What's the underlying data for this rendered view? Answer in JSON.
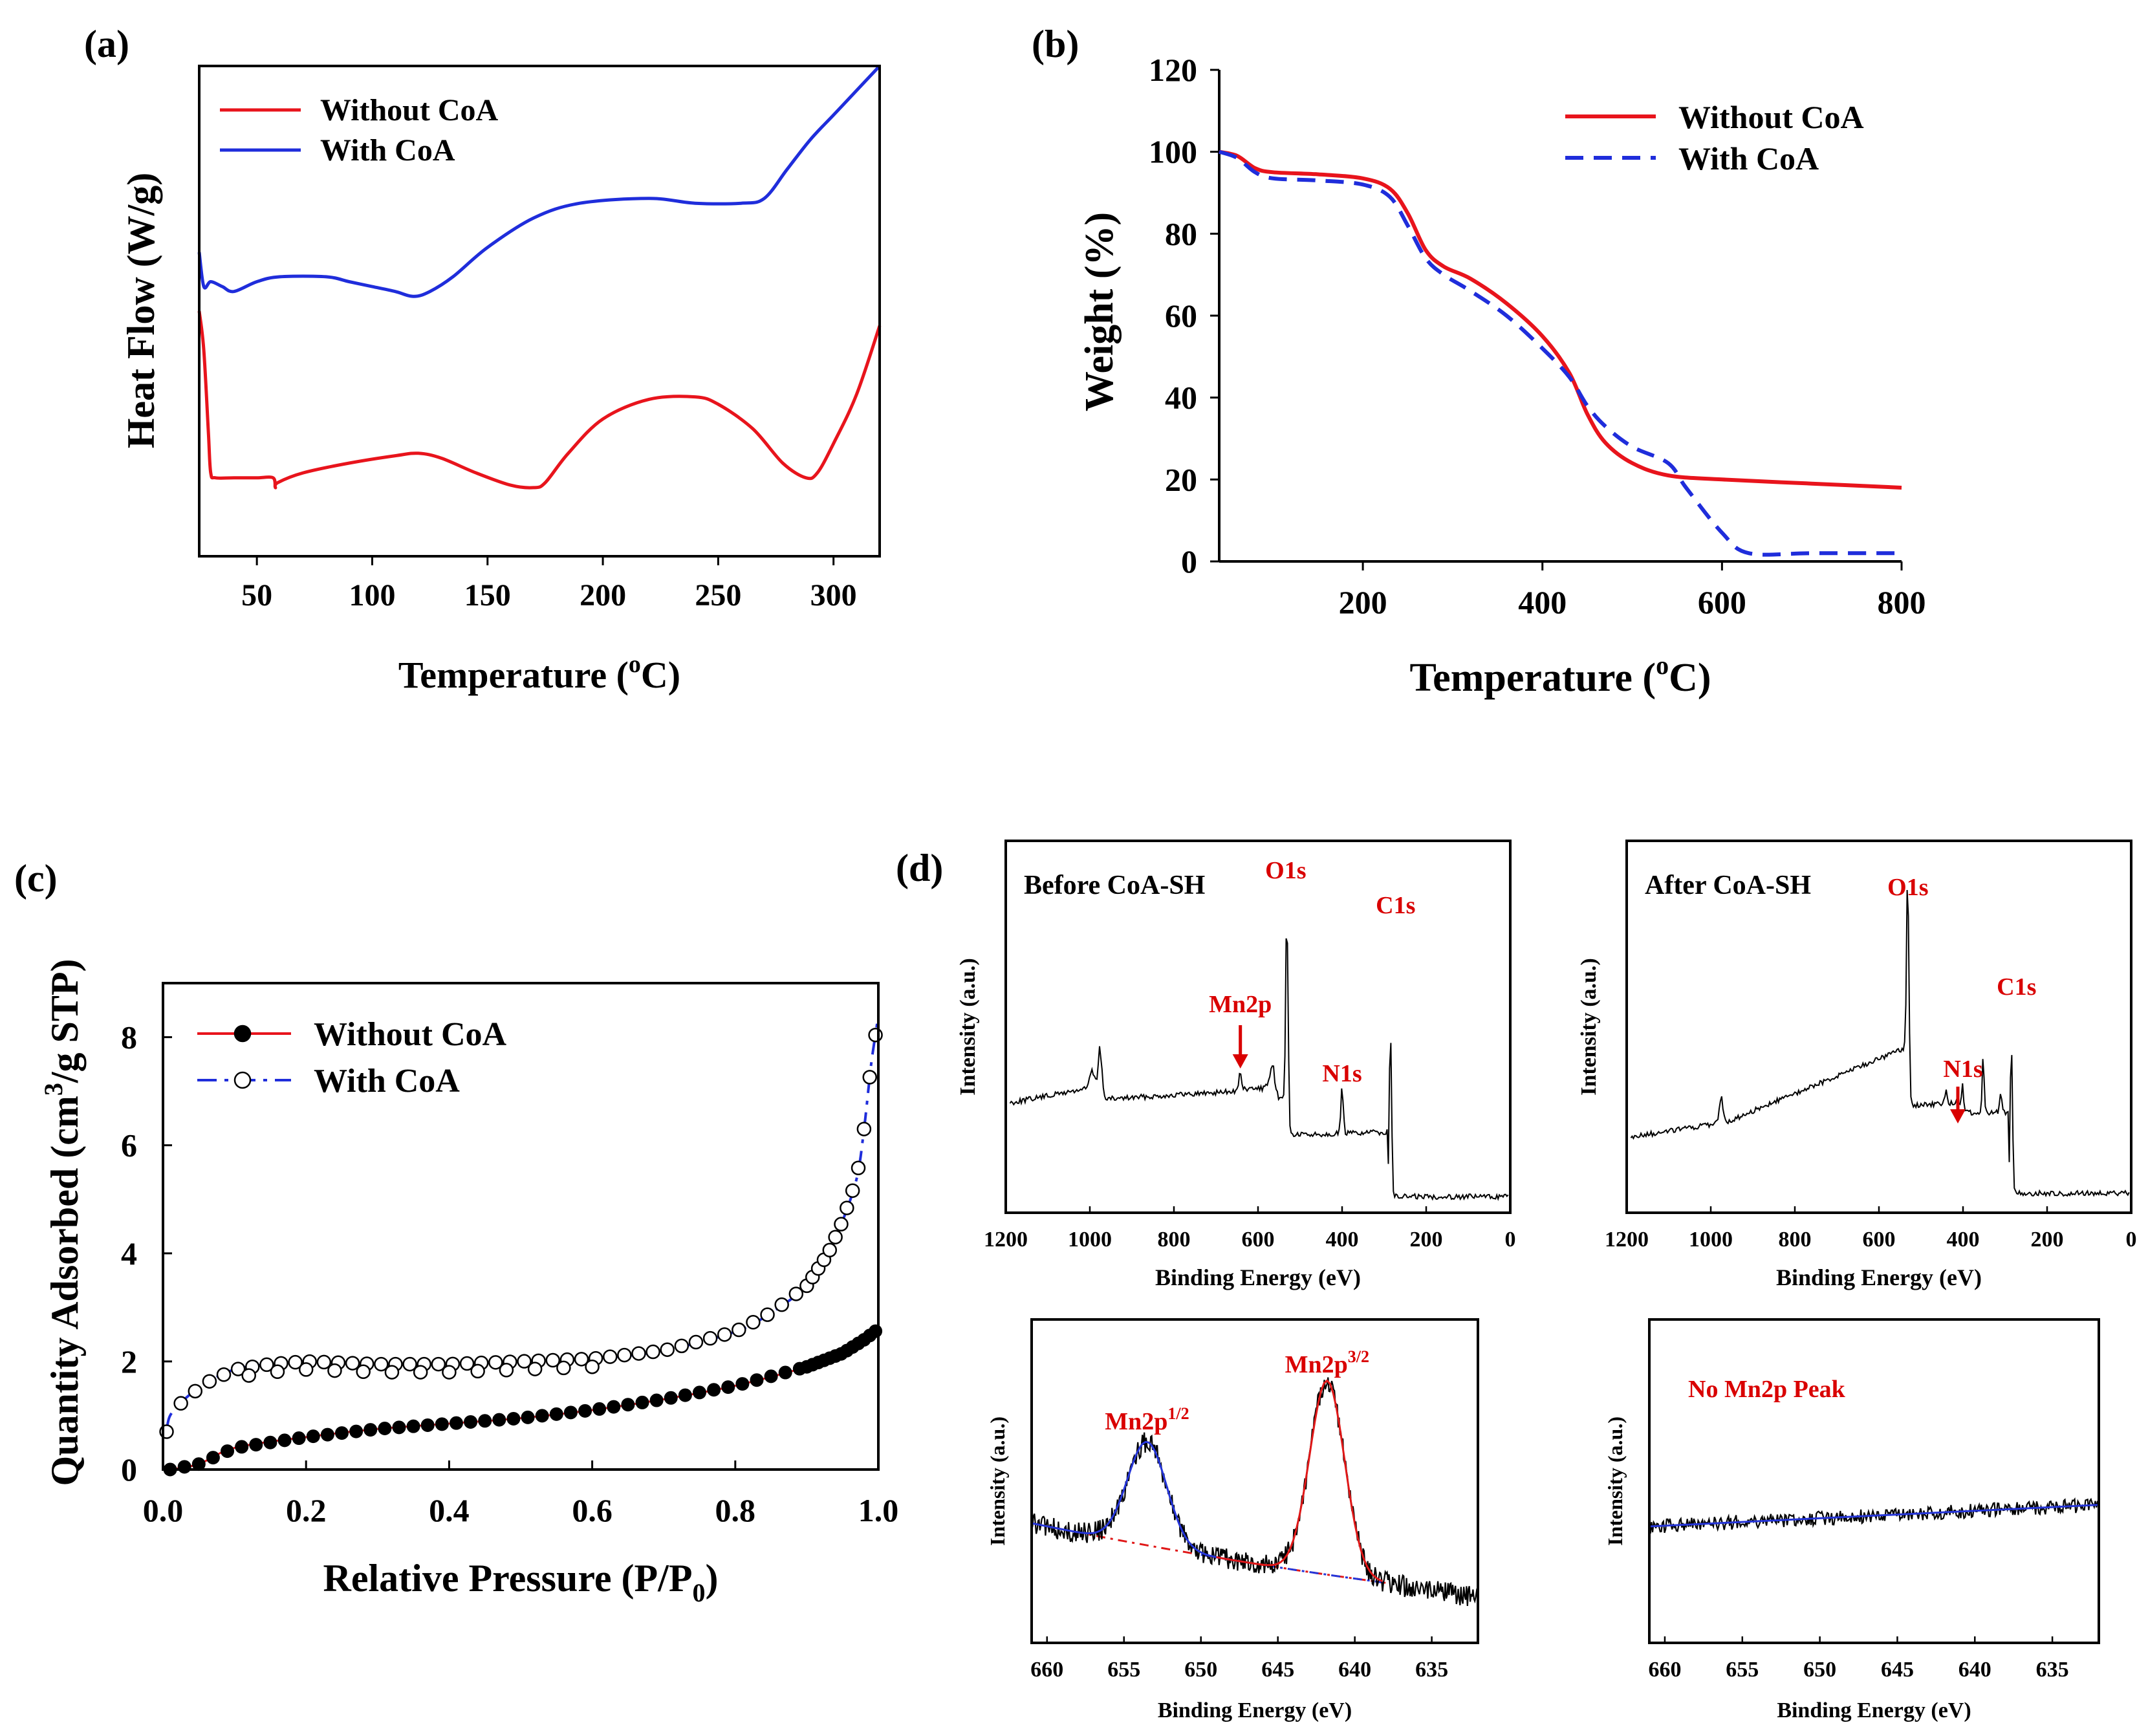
{
  "chart_data": [
    {
      "id": "a",
      "type": "line",
      "panel_label": "(a)",
      "xlabel": "Temperature (",
      "xlabel_sup": "o",
      "xlabel_end": "C)",
      "ylabel": "Heat Flow (W/g)",
      "xlim": [
        25,
        320
      ],
      "ylim": [
        0,
        100
      ],
      "xticks": [
        50,
        100,
        150,
        200,
        250,
        300
      ],
      "colors": {
        "without": "#e8141c",
        "with": "#1f2ddb"
      },
      "series": [
        {
          "name": "Without CoA",
          "x": [
            25,
            27,
            29,
            30,
            32,
            40,
            50,
            57,
            58,
            59,
            70,
            90,
            110,
            120,
            130,
            145,
            160,
            170,
            175,
            185,
            200,
            220,
            240,
            250,
            265,
            278,
            288,
            293,
            300,
            310,
            320
          ],
          "y": [
            50,
            42,
            25,
            17,
            16,
            16,
            16,
            16,
            14,
            15,
            17,
            19,
            20.5,
            21,
            20,
            17,
            14.5,
            14,
            15,
            21,
            28,
            32,
            32.5,
            31,
            26,
            19,
            16,
            17,
            23,
            33,
            47
          ]
        },
        {
          "name": "With CoA",
          "x": [
            25,
            27,
            30,
            35,
            40,
            50,
            60,
            80,
            90,
            100,
            110,
            118,
            125,
            135,
            150,
            170,
            190,
            220,
            240,
            260,
            270,
            280,
            290,
            300,
            310,
            320
          ],
          "y": [
            62,
            55,
            56,
            55,
            54,
            56,
            57,
            57,
            56,
            55,
            54,
            53,
            54,
            57,
            63,
            69,
            72,
            73,
            72,
            72,
            73,
            79,
            85,
            90,
            95,
            100
          ]
        }
      ]
    },
    {
      "id": "b",
      "type": "line",
      "panel_label": "(b)",
      "xlabel": "Temperature (",
      "xlabel_sup": "o",
      "xlabel_end": "C)",
      "ylabel": "Weight (%)",
      "xlim": [
        40,
        800
      ],
      "ylim": [
        0,
        120
      ],
      "xticks": [
        200,
        400,
        600,
        800
      ],
      "yticks": [
        0,
        20,
        40,
        60,
        80,
        100,
        120
      ],
      "colors": {
        "without": "#e8141c",
        "with": "#1f2ddb"
      },
      "series": [
        {
          "name": "Without CoA",
          "style": "solid",
          "x": [
            40,
            60,
            80,
            100,
            150,
            200,
            230,
            250,
            270,
            290,
            320,
            360,
            400,
            430,
            450,
            470,
            500,
            540,
            600,
            700,
            800
          ],
          "y": [
            100,
            99,
            96,
            95,
            94.5,
            93.5,
            91,
            85,
            76,
            72,
            69,
            63,
            55,
            46,
            36,
            29,
            24,
            21,
            20,
            19,
            18
          ]
        },
        {
          "name": "With CoA",
          "style": "dashed",
          "x": [
            40,
            60,
            80,
            100,
            150,
            200,
            230,
            250,
            270,
            290,
            320,
            360,
            400,
            430,
            450,
            470,
            500,
            540,
            560,
            600,
            630,
            700,
            800
          ],
          "y": [
            100,
            98.5,
            95,
            93.5,
            93,
            92,
            89,
            82,
            74,
            70,
            66,
            60,
            52,
            45,
            38,
            33,
            28,
            24,
            18,
            7,
            2,
            2,
            2
          ]
        }
      ]
    },
    {
      "id": "c",
      "type": "scatter",
      "panel_label": "(c)",
      "xlabel": "Relative Pressure (P/P",
      "xlabel_sub": "0",
      "xlabel_end": ")",
      "ylabel": "Quantity Adsorbed (cm",
      "ylabel_sup": "3",
      "ylabel_end": "/g STP)",
      "xlim": [
        0,
        1.0
      ],
      "ylim": [
        0,
        9
      ],
      "xticks": [
        0.0,
        0.2,
        0.4,
        0.6,
        0.8,
        1.0
      ],
      "yticks": [
        0,
        2,
        4,
        6,
        8
      ],
      "colors": {
        "without": "#e8141c",
        "with": "#1f2ddb"
      },
      "series": [
        {
          "name": "Without CoA",
          "marker": "filled-circle",
          "x": [
            0.01,
            0.05,
            0.1,
            0.2,
            0.3,
            0.4,
            0.5,
            0.6,
            0.7,
            0.8,
            0.9,
            0.95,
            0.98,
            1.0
          ],
          "y": [
            0.0,
            0.1,
            0.4,
            0.6,
            0.75,
            0.85,
            0.95,
            1.1,
            1.3,
            1.55,
            1.9,
            2.15,
            2.4,
            2.6
          ]
        },
        {
          "name": "With CoA",
          "marker": "open-circle",
          "line": "dash-dot",
          "x": [
            0.005,
            0.01,
            0.03,
            0.06,
            0.1,
            0.15,
            0.2,
            0.3,
            0.4,
            0.5,
            0.6,
            0.7,
            0.8,
            0.85,
            0.9,
            0.93,
            0.95,
            0.97,
            0.98,
            0.99,
            1.0
          ],
          "y": [
            0.7,
            1.0,
            1.3,
            1.6,
            1.85,
            1.95,
            2.0,
            1.95,
            1.95,
            2.0,
            2.05,
            2.2,
            2.55,
            2.9,
            3.4,
            4.0,
            4.6,
            5.4,
            6.3,
            7.5,
            8.4
          ]
        }
      ]
    },
    {
      "id": "d1",
      "type": "line",
      "panel_label": "(d)",
      "title": "Before CoA-SH",
      "xlabel": "Binding Energy (eV)",
      "ylabel": "Intensity (a.u.)",
      "xlim": [
        1200,
        0
      ],
      "xticks": [
        1200,
        1000,
        800,
        600,
        400,
        200,
        0
      ],
      "annotations": [
        {
          "text": "O1s",
          "x": 531
        },
        {
          "text": "C1s",
          "x": 285
        },
        {
          "text": "N1s",
          "x": 400
        },
        {
          "text": "Mn2p",
          "x": 642,
          "arrow": true
        }
      ]
    },
    {
      "id": "d2",
      "type": "line",
      "title": "After CoA-SH",
      "xlabel": "Binding Energy (eV)",
      "ylabel": "Intensity (a.u.)",
      "xlim": [
        1200,
        0
      ],
      "xticks": [
        1200,
        1000,
        800,
        600,
        400,
        200,
        0
      ],
      "annotations": [
        {
          "text": "O1s",
          "x": 531
        },
        {
          "text": "C1s",
          "x": 285
        },
        {
          "text": "N1s",
          "x": 400,
          "arrow": true
        }
      ]
    },
    {
      "id": "d3",
      "type": "line",
      "xlabel": "Binding Energy (eV)",
      "ylabel": "Intensity (a.u.)",
      "xlim": [
        661,
        632
      ],
      "xticks": [
        660,
        655,
        650,
        645,
        640,
        635
      ],
      "annotations": [
        {
          "text": "Mn2p",
          "sup": "1/2",
          "x": 653.5
        },
        {
          "text": "Mn2p",
          "sup": "3/2",
          "x": 641.8
        }
      ]
    },
    {
      "id": "d4",
      "type": "line",
      "xlabel": "Binding Energy (eV)",
      "ylabel": "Intensity (a.u.)",
      "xlim": [
        661,
        632
      ],
      "xticks": [
        660,
        655,
        650,
        645,
        640,
        635
      ],
      "annotations": [
        {
          "text": "No Mn2p Peak"
        }
      ]
    }
  ]
}
